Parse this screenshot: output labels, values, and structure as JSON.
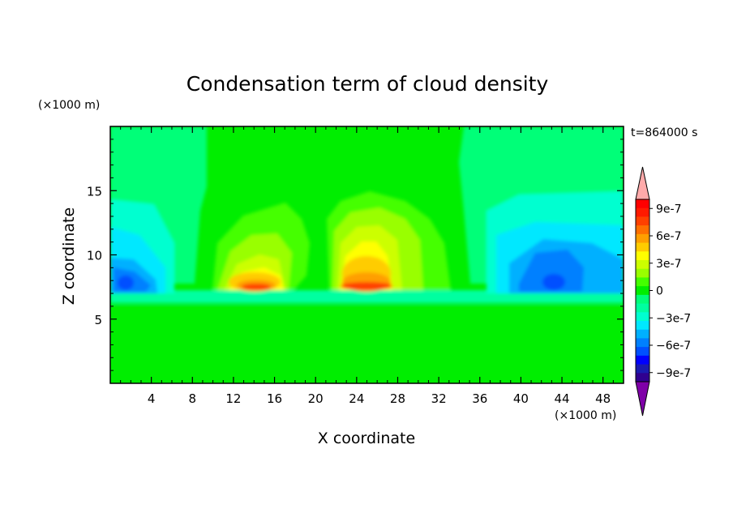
{
  "chart_data": {
    "type": "heatmap",
    "title": "Condensation term of cloud density",
    "xlabel": "X coordinate",
    "ylabel": "Z coordinate",
    "x_unit": "(×1000 m)",
    "y_unit": "(×1000 m)",
    "time_label": "t=864000 s",
    "xlim": [
      0,
      50
    ],
    "ylim": [
      0,
      20
    ],
    "x_ticks": [
      4,
      8,
      12,
      16,
      20,
      24,
      28,
      32,
      36,
      40,
      44,
      48
    ],
    "y_ticks": [
      5,
      10,
      15
    ],
    "colorbar": {
      "levels": [
        -1.1e-06,
        -1e-06,
        -9e-07,
        -8e-07,
        -7e-07,
        -6e-07,
        -5e-07,
        -4e-07,
        -3e-07,
        -2e-07,
        -1e-07,
        0,
        1e-07,
        2e-07,
        3e-07,
        4e-07,
        5e-07,
        6e-07,
        7e-07,
        8e-07,
        9e-07,
        1e-06,
        1.1e-06
      ],
      "colors": [
        "#7f00a8",
        "#300090",
        "#1a1ab0",
        "#0000ff",
        "#0050ff",
        "#0080ff",
        "#00b0ff",
        "#00e8ff",
        "#00ffd0",
        "#00ffa0",
        "#00ff78",
        "#00ee00",
        "#44ff00",
        "#99ff00",
        "#ccff00",
        "#ffff00",
        "#ffcc00",
        "#ff9f00",
        "#ff7000",
        "#ff4000",
        "#ff1a00",
        "#ff0000",
        "#ffaaaa"
      ],
      "tick_labels": [
        "9e-7",
        "6e-7",
        "3e-7",
        "0",
        "−3e-7",
        "−6e-7",
        "−9e-7"
      ],
      "tick_values": [
        9e-07,
        6e-07,
        3e-07,
        0,
        -3e-07,
        -6e-07,
        -9e-07
      ]
    }
  }
}
